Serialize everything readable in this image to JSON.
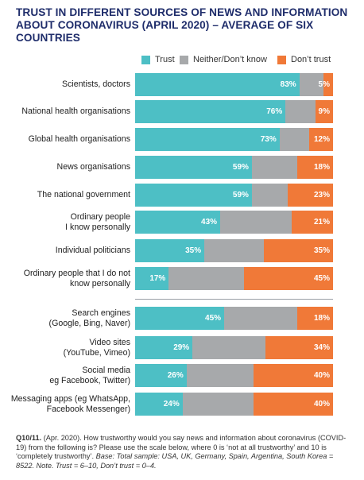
{
  "title": "TRUST IN DIFFERENT SOURCES OF NEWS AND INFORMATION ABOUT CORONAVIRUS (APRIL 2020) – AVERAGE OF SIX COUNTRIES",
  "colors": {
    "trust": "#4dbfc5",
    "neither": "#a7a9ab",
    "dont_trust": "#f07938",
    "title": "#1f2d6b"
  },
  "legend": {
    "trust": "Trust",
    "neither": "Neither/Don’t know",
    "dont_trust": "Don’t trust"
  },
  "chart_data": {
    "type": "bar",
    "orientation": "horizontal",
    "stacked": true,
    "title": "TRUST IN DIFFERENT SOURCES OF NEWS AND INFORMATION ABOUT CORONAVIRUS (APRIL 2020) – AVERAGE OF SIX COUNTRIES",
    "legend_position": "top-right",
    "xlim": [
      0,
      100
    ],
    "categories": [
      [
        "Scientists, doctors"
      ],
      [
        "National health organisations"
      ],
      [
        "Global health organisations"
      ],
      [
        "News organisations"
      ],
      [
        "The national government"
      ],
      [
        "Ordinary people",
        "I know personally"
      ],
      [
        "Individual politicians"
      ],
      [
        "Ordinary people that I do not",
        "know personally"
      ],
      [
        "Search engines",
        "(Google, Bing, Naver)"
      ],
      [
        "Video sites",
        "(YouTube, Vimeo)"
      ],
      [
        "Social media",
        "eg Facebook, Twitter)"
      ],
      [
        "Messaging apps (eg WhatsApp,",
        "Facebook Messenger)"
      ]
    ],
    "series": [
      {
        "name": "Trust",
        "values": [
          83,
          76,
          73,
          59,
          59,
          43,
          35,
          17,
          45,
          29,
          26,
          24
        ]
      },
      {
        "name": "Neither/Don’t know",
        "values": [
          12,
          15,
          15,
          23,
          18,
          36,
          30,
          38,
          37,
          37,
          34,
          36
        ]
      },
      {
        "name": "Don’t trust",
        "values": [
          5,
          9,
          12,
          18,
          23,
          21,
          35,
          45,
          18,
          34,
          40,
          40
        ]
      }
    ],
    "data_labels": {
      "Trust": [
        "83%",
        "76%",
        "73%",
        "59%",
        "59%",
        "43%",
        "35%",
        "17%",
        "45%",
        "29%",
        "26%",
        "24%"
      ],
      "Don’t trust": [
        "5%",
        "9%",
        "12%",
        "18%",
        "23%",
        "21%",
        "35%",
        "45%",
        "18%",
        "34%",
        "40%",
        "40%"
      ]
    }
  },
  "footnote": {
    "lead": "Q10/11.",
    "text": " (Apr. 2020). How trustworthy would you say news and information about coronavirus (COVID-19) from the following is? Please use the scale below, where 0 is ‘not at all trustworthy’ and 10 is ‘completely trustworthy’. ",
    "base": "Base: Total sample: USA, UK, Germany, Spain, Argentina, South Korea = 8522. Note. Trust = 6–10, Don’t trust = 0–4."
  }
}
